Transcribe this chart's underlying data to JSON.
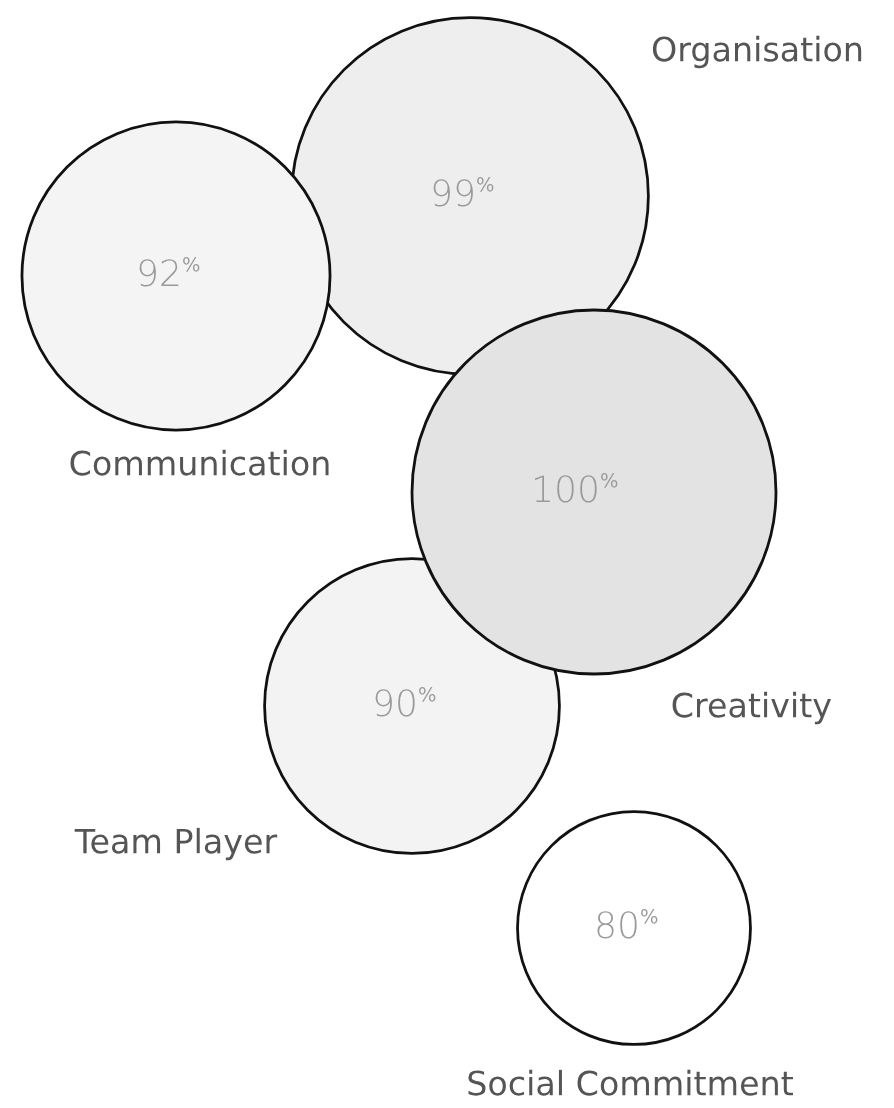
{
  "chart_data": {
    "type": "other",
    "categories": [
      "Organisation",
      "Communication",
      "Creativity",
      "Team Player",
      "Social Commitment"
    ],
    "values": [
      99,
      92,
      100,
      90,
      80
    ],
    "value_labels": [
      "99$^{%}$",
      "92$^{%}$",
      "100$^{%}$",
      "90$^{%}$",
      "80$^{%}$"
    ],
    "colors": [
      "#eeeeee",
      "#f4f4f4",
      "#e3e3e3",
      "#f3f3f3",
      "#ffffff"
    ]
  }
}
